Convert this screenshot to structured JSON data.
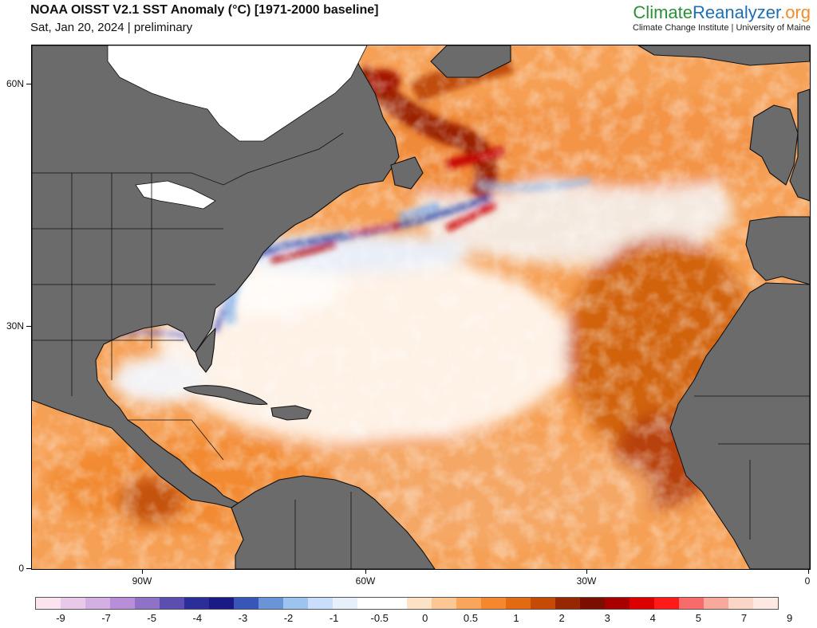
{
  "header": {
    "title": "NOAA OISST V2.1 SST Anomaly (°C) [1971-2000 baseline]",
    "subtitle": "Sat, Jan 20, 2024 | preliminary"
  },
  "brand": {
    "part1": "Climate",
    "part2": "Reanalyzer",
    "part3": ".org",
    "subtitle": "Climate Change Institute | University of Maine",
    "color1": "#2c8f3a",
    "color2": "#1f6fb2",
    "color3": "#f28c28"
  },
  "map": {
    "lat_labels": [
      "60N",
      "30N",
      "0"
    ],
    "lon_labels": [
      "90W",
      "60W",
      "30W",
      "0"
    ],
    "land_color": "#6b6b6b",
    "ice_color": "#ffffff",
    "border_color": "#111111"
  },
  "legend": {
    "labels": [
      "-9",
      "-7",
      "-5",
      "-4",
      "-3",
      "-2",
      "-1",
      "-0.5",
      "0",
      "0.5",
      "1",
      "2",
      "3",
      "4",
      "5",
      "7",
      "9"
    ],
    "colors": [
      "#fbe4ef",
      "#e8c9ea",
      "#d3afe4",
      "#b98ed8",
      "#8f72c8",
      "#5b4eb0",
      "#2b2e99",
      "#191a85",
      "#3855b8",
      "#6a94d8",
      "#9cc4ee",
      "#c8defa",
      "#e6effa",
      "#ffffff",
      "#ffffff",
      "#fde2c6",
      "#fcc795",
      "#f9a65c",
      "#f5882e",
      "#e46a12",
      "#c44a05",
      "#962800",
      "#7a0f00",
      "#a80000",
      "#dc0000",
      "#ff1a1a",
      "#f76b6b",
      "#f7a99c",
      "#fbd5c6",
      "#fde9e2"
    ]
  }
}
